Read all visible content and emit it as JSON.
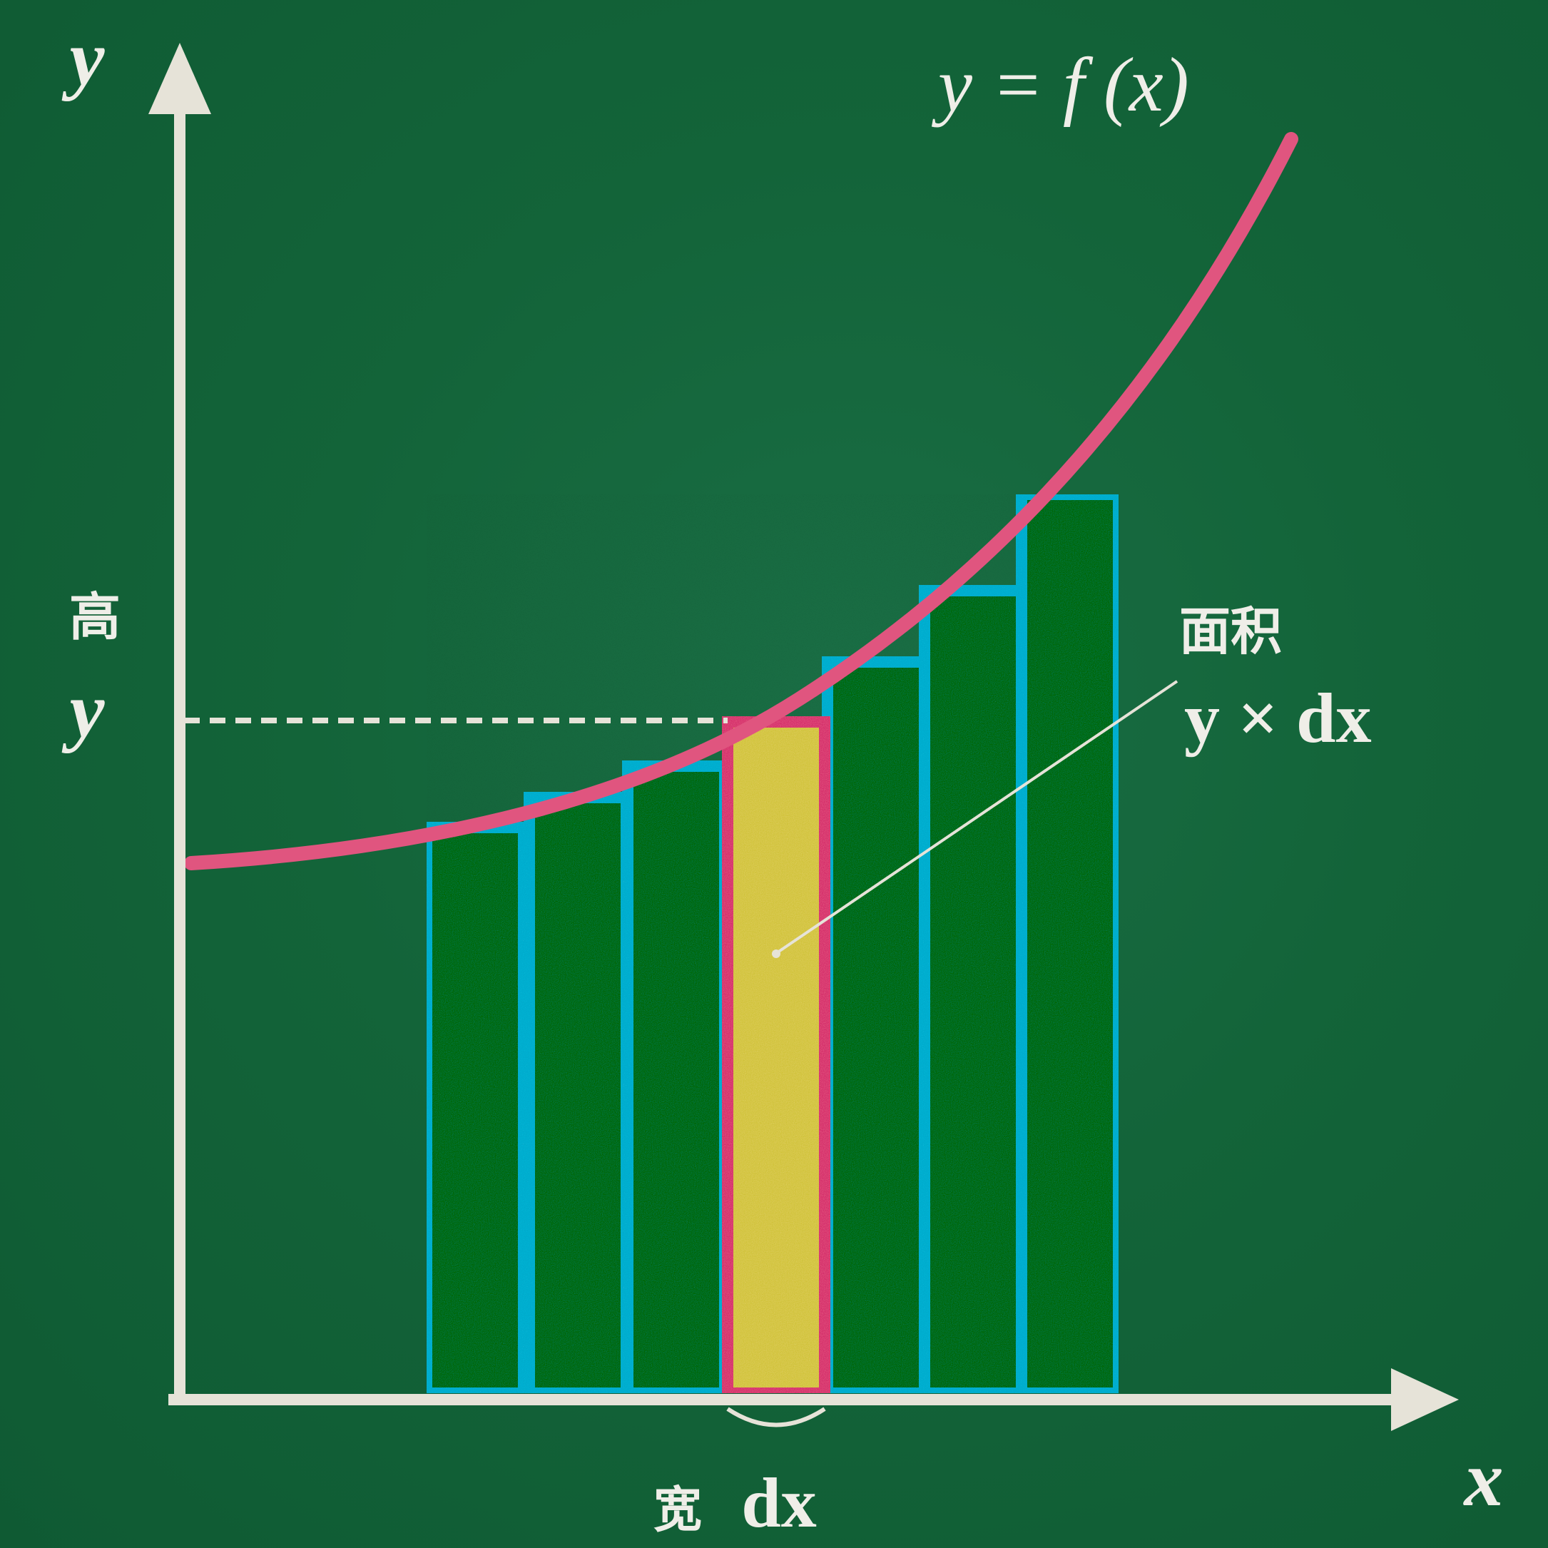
{
  "labels": {
    "y_axis": "y",
    "x_axis": "x",
    "curve": "y = f (x)",
    "height_cjk": "高",
    "height_var": "y",
    "width_cjk": "宽",
    "width_var": "dx",
    "area_cjk": "面积",
    "area_formula": "y × dx"
  },
  "colors": {
    "board": "#136439",
    "chalk": "#e6e3d8",
    "curve": "#e0557f",
    "bar_outline": "#19b6d6",
    "bar_fill": "#0f7a45",
    "highlight_fill": "#dccd5c",
    "highlight_outline": "#e0557f"
  }
}
